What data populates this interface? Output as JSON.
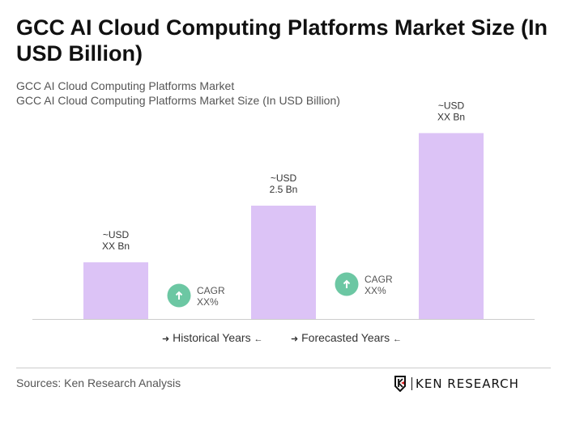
{
  "title": "GCC AI Cloud Computing Platforms Market Size (In USD Billion)",
  "subtitle_1": "GCC AI Cloud Computing Platforms Market",
  "subtitle_2": "GCC AI Cloud Computing Platforms Market Size (In USD Billion)",
  "chart_data": {
    "type": "bar",
    "categories": [
      "",
      "",
      ""
    ],
    "values": [
      1.25,
      2.5,
      4.1
    ],
    "data_labels": [
      [
        "~USD",
        "XX Bn"
      ],
      [
        "~USD",
        "2.5 Bn"
      ],
      [
        "~USD",
        "XX Bn"
      ]
    ],
    "cagr_annotations": [
      [
        "CAGR",
        "XX%"
      ],
      [
        "CAGR",
        "XX%"
      ]
    ],
    "bar_color": "#dcc3f6",
    "cagr_color": "#6cc7a3",
    "grid": false
  },
  "legend": {
    "historical": "Historical Years",
    "forecasted": "Forecasted Years",
    "arrow_right": "➜",
    "arrow_left": "←"
  },
  "footer": {
    "sources": "Sources: Ken Research Analysis",
    "logo_text": "KEN RESEARCH"
  }
}
